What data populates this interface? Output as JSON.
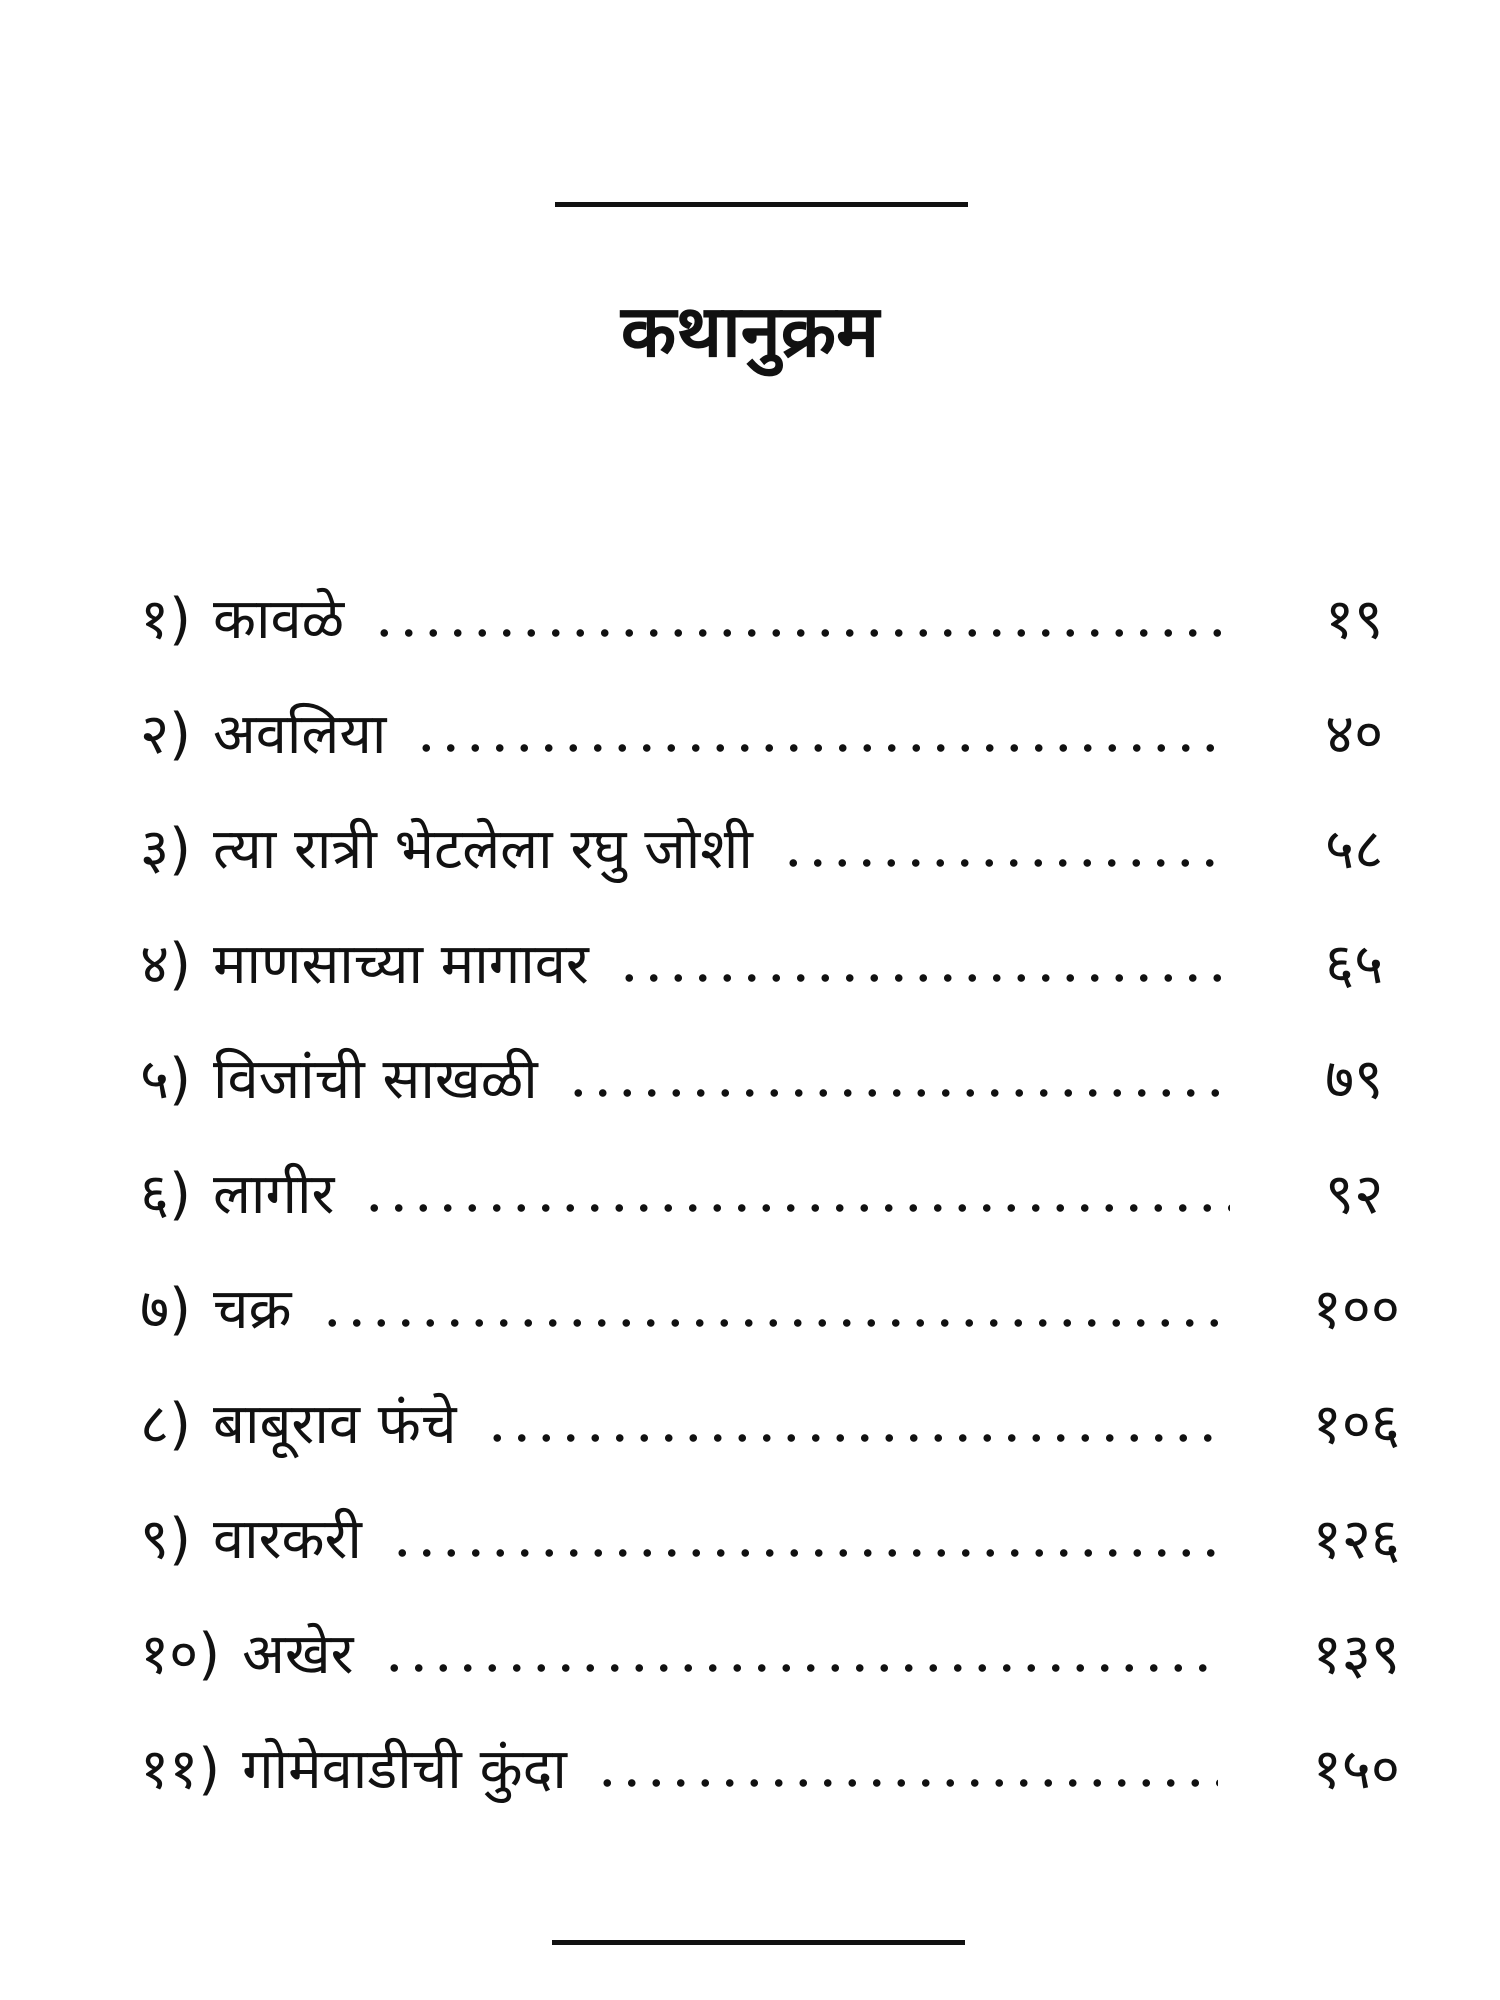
{
  "title": "कथानुक्रम",
  "entries": [
    {
      "number": "१)",
      "title": "कावळे",
      "page": "१९"
    },
    {
      "number": "२)",
      "title": "अवलिया",
      "page": "४०"
    },
    {
      "number": "३)",
      "title": "त्या रात्री भेटलेला रघु जोशी",
      "page": "५८"
    },
    {
      "number": "४)",
      "title": "माणसाच्या मागावर",
      "page": "६५"
    },
    {
      "number": "५)",
      "title": "विजांची साखळी",
      "page": "७९"
    },
    {
      "number": "६)",
      "title": "लागीर",
      "page": "९२"
    },
    {
      "number": "७)",
      "title": "चक्र",
      "page": "१००"
    },
    {
      "number": "८)",
      "title": "बाबूराव फंचे",
      "page": "१०६"
    },
    {
      "number": "९)",
      "title": "वारकरी",
      "page": "१२६"
    },
    {
      "number": "१०)",
      "title": "अखेर",
      "page": "१३९"
    },
    {
      "number": "११)",
      "title": "गोमेवाडीची कुंदा",
      "page": "१५०"
    }
  ]
}
